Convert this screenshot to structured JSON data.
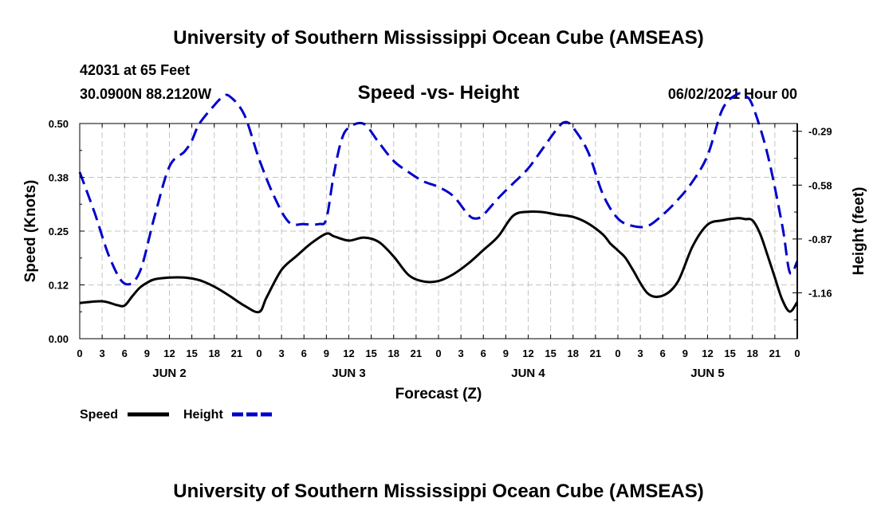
{
  "header": {
    "top_title": "University of Southern Mississippi Ocean Cube (AMSEAS)",
    "station": "42031 at 65 Feet",
    "coords": "30.0900N  88.2120W",
    "date": "06/02/2021 Hour 00",
    "bottom_title": "University of Southern Mississippi Ocean Cube (AMSEAS)"
  },
  "chart_data": {
    "type": "line",
    "title": "Speed -vs- Height",
    "xlabel": "Forecast (Z)",
    "ylabel": "Speed (Knots)",
    "y2label": "Height (feet)",
    "x_unit": "hours from 06/02 00Z",
    "xlim": [
      0,
      96
    ],
    "ylim": [
      0,
      0.5
    ],
    "y2lim": [
      -1.4069,
      -0.2483
    ],
    "yticks": [
      0.0,
      0.125,
      0.25,
      0.375,
      0.5
    ],
    "ytick_labels": [
      "0.00",
      "0.12",
      "0.25",
      "0.38",
      "0.50"
    ],
    "y2ticks": [
      -1.16,
      -0.87,
      -0.58,
      -0.29
    ],
    "y2tick_labels": [
      "-1.16",
      "-0.87",
      "-0.58",
      "-0.29"
    ],
    "xtick_labels": [
      "0",
      "3",
      "6",
      "9",
      "12",
      "15",
      "18",
      "21",
      "0",
      "3",
      "6",
      "9",
      "12",
      "15",
      "18",
      "21",
      "0",
      "3",
      "6",
      "9",
      "12",
      "15",
      "18",
      "21",
      "0",
      "3",
      "6",
      "9",
      "12",
      "15",
      "18",
      "21",
      "0"
    ],
    "day_labels": [
      {
        "label": "JUN 2",
        "hour": 12
      },
      {
        "label": "JUN 3",
        "hour": 36
      },
      {
        "label": "JUN 4",
        "hour": 60
      },
      {
        "label": "JUN 5",
        "hour": 84
      }
    ],
    "grid": true,
    "legend_position": "bottom-left",
    "series": [
      {
        "name": "Speed",
        "axis": "left",
        "color": "#000000",
        "style": "solid",
        "x": [
          0,
          3,
          5,
          6,
          7,
          8,
          9,
          10,
          12,
          14,
          16,
          18,
          20,
          22,
          24,
          25,
          27,
          29,
          31,
          33,
          34,
          36,
          38,
          40,
          42,
          44,
          46,
          48,
          50,
          52,
          54,
          56,
          58,
          60,
          62,
          64,
          66,
          68,
          70,
          71,
          72,
          73,
          74,
          76,
          78,
          80,
          82,
          84,
          86,
          88,
          89,
          90,
          91,
          92,
          93,
          94,
          95,
          96
        ],
        "y": [
          0.083,
          0.087,
          0.078,
          0.077,
          0.098,
          0.118,
          0.13,
          0.138,
          0.142,
          0.142,
          0.136,
          0.121,
          0.1,
          0.077,
          0.062,
          0.096,
          0.16,
          0.192,
          0.222,
          0.244,
          0.238,
          0.228,
          0.235,
          0.225,
          0.191,
          0.148,
          0.133,
          0.134,
          0.15,
          0.175,
          0.206,
          0.238,
          0.286,
          0.295,
          0.294,
          0.288,
          0.283,
          0.268,
          0.242,
          0.221,
          0.205,
          0.188,
          0.16,
          0.105,
          0.1,
          0.132,
          0.215,
          0.265,
          0.275,
          0.28,
          0.278,
          0.275,
          0.245,
          0.195,
          0.142,
          0.09,
          0.063,
          0.085
        ]
      },
      {
        "name": "Height",
        "axis": "right",
        "color": "#0000cc",
        "style": "dashed",
        "x": [
          0,
          2,
          4,
          6,
          8,
          10,
          12,
          14,
          15,
          16,
          18,
          19,
          20,
          22,
          24,
          26,
          28,
          30,
          32,
          33,
          34,
          35,
          36,
          38,
          40,
          42,
          44,
          46,
          48,
          50,
          52,
          53,
          54,
          56,
          58,
          60,
          62,
          64,
          65,
          66,
          68,
          70,
          72,
          74,
          76,
          78,
          80,
          82,
          84,
          86,
          88,
          89,
          90,
          92,
          94,
          95,
          96
        ],
        "y": [
          -0.51,
          -0.73,
          -0.97,
          -1.11,
          -1.05,
          -0.75,
          -0.48,
          -0.4,
          -0.34,
          -0.25,
          -0.15,
          -0.11,
          -0.1,
          -0.2,
          -0.44,
          -0.64,
          -0.78,
          -0.79,
          -0.79,
          -0.76,
          -0.52,
          -0.34,
          -0.27,
          -0.25,
          -0.35,
          -0.45,
          -0.51,
          -0.56,
          -0.59,
          -0.64,
          -0.74,
          -0.76,
          -0.74,
          -0.65,
          -0.57,
          -0.49,
          -0.38,
          -0.27,
          -0.24,
          -0.27,
          -0.4,
          -0.63,
          -0.76,
          -0.8,
          -0.8,
          -0.74,
          -0.66,
          -0.56,
          -0.42,
          -0.17,
          -0.09,
          -0.1,
          -0.15,
          -0.41,
          -0.8,
          -1.05,
          -0.99
        ]
      }
    ]
  }
}
